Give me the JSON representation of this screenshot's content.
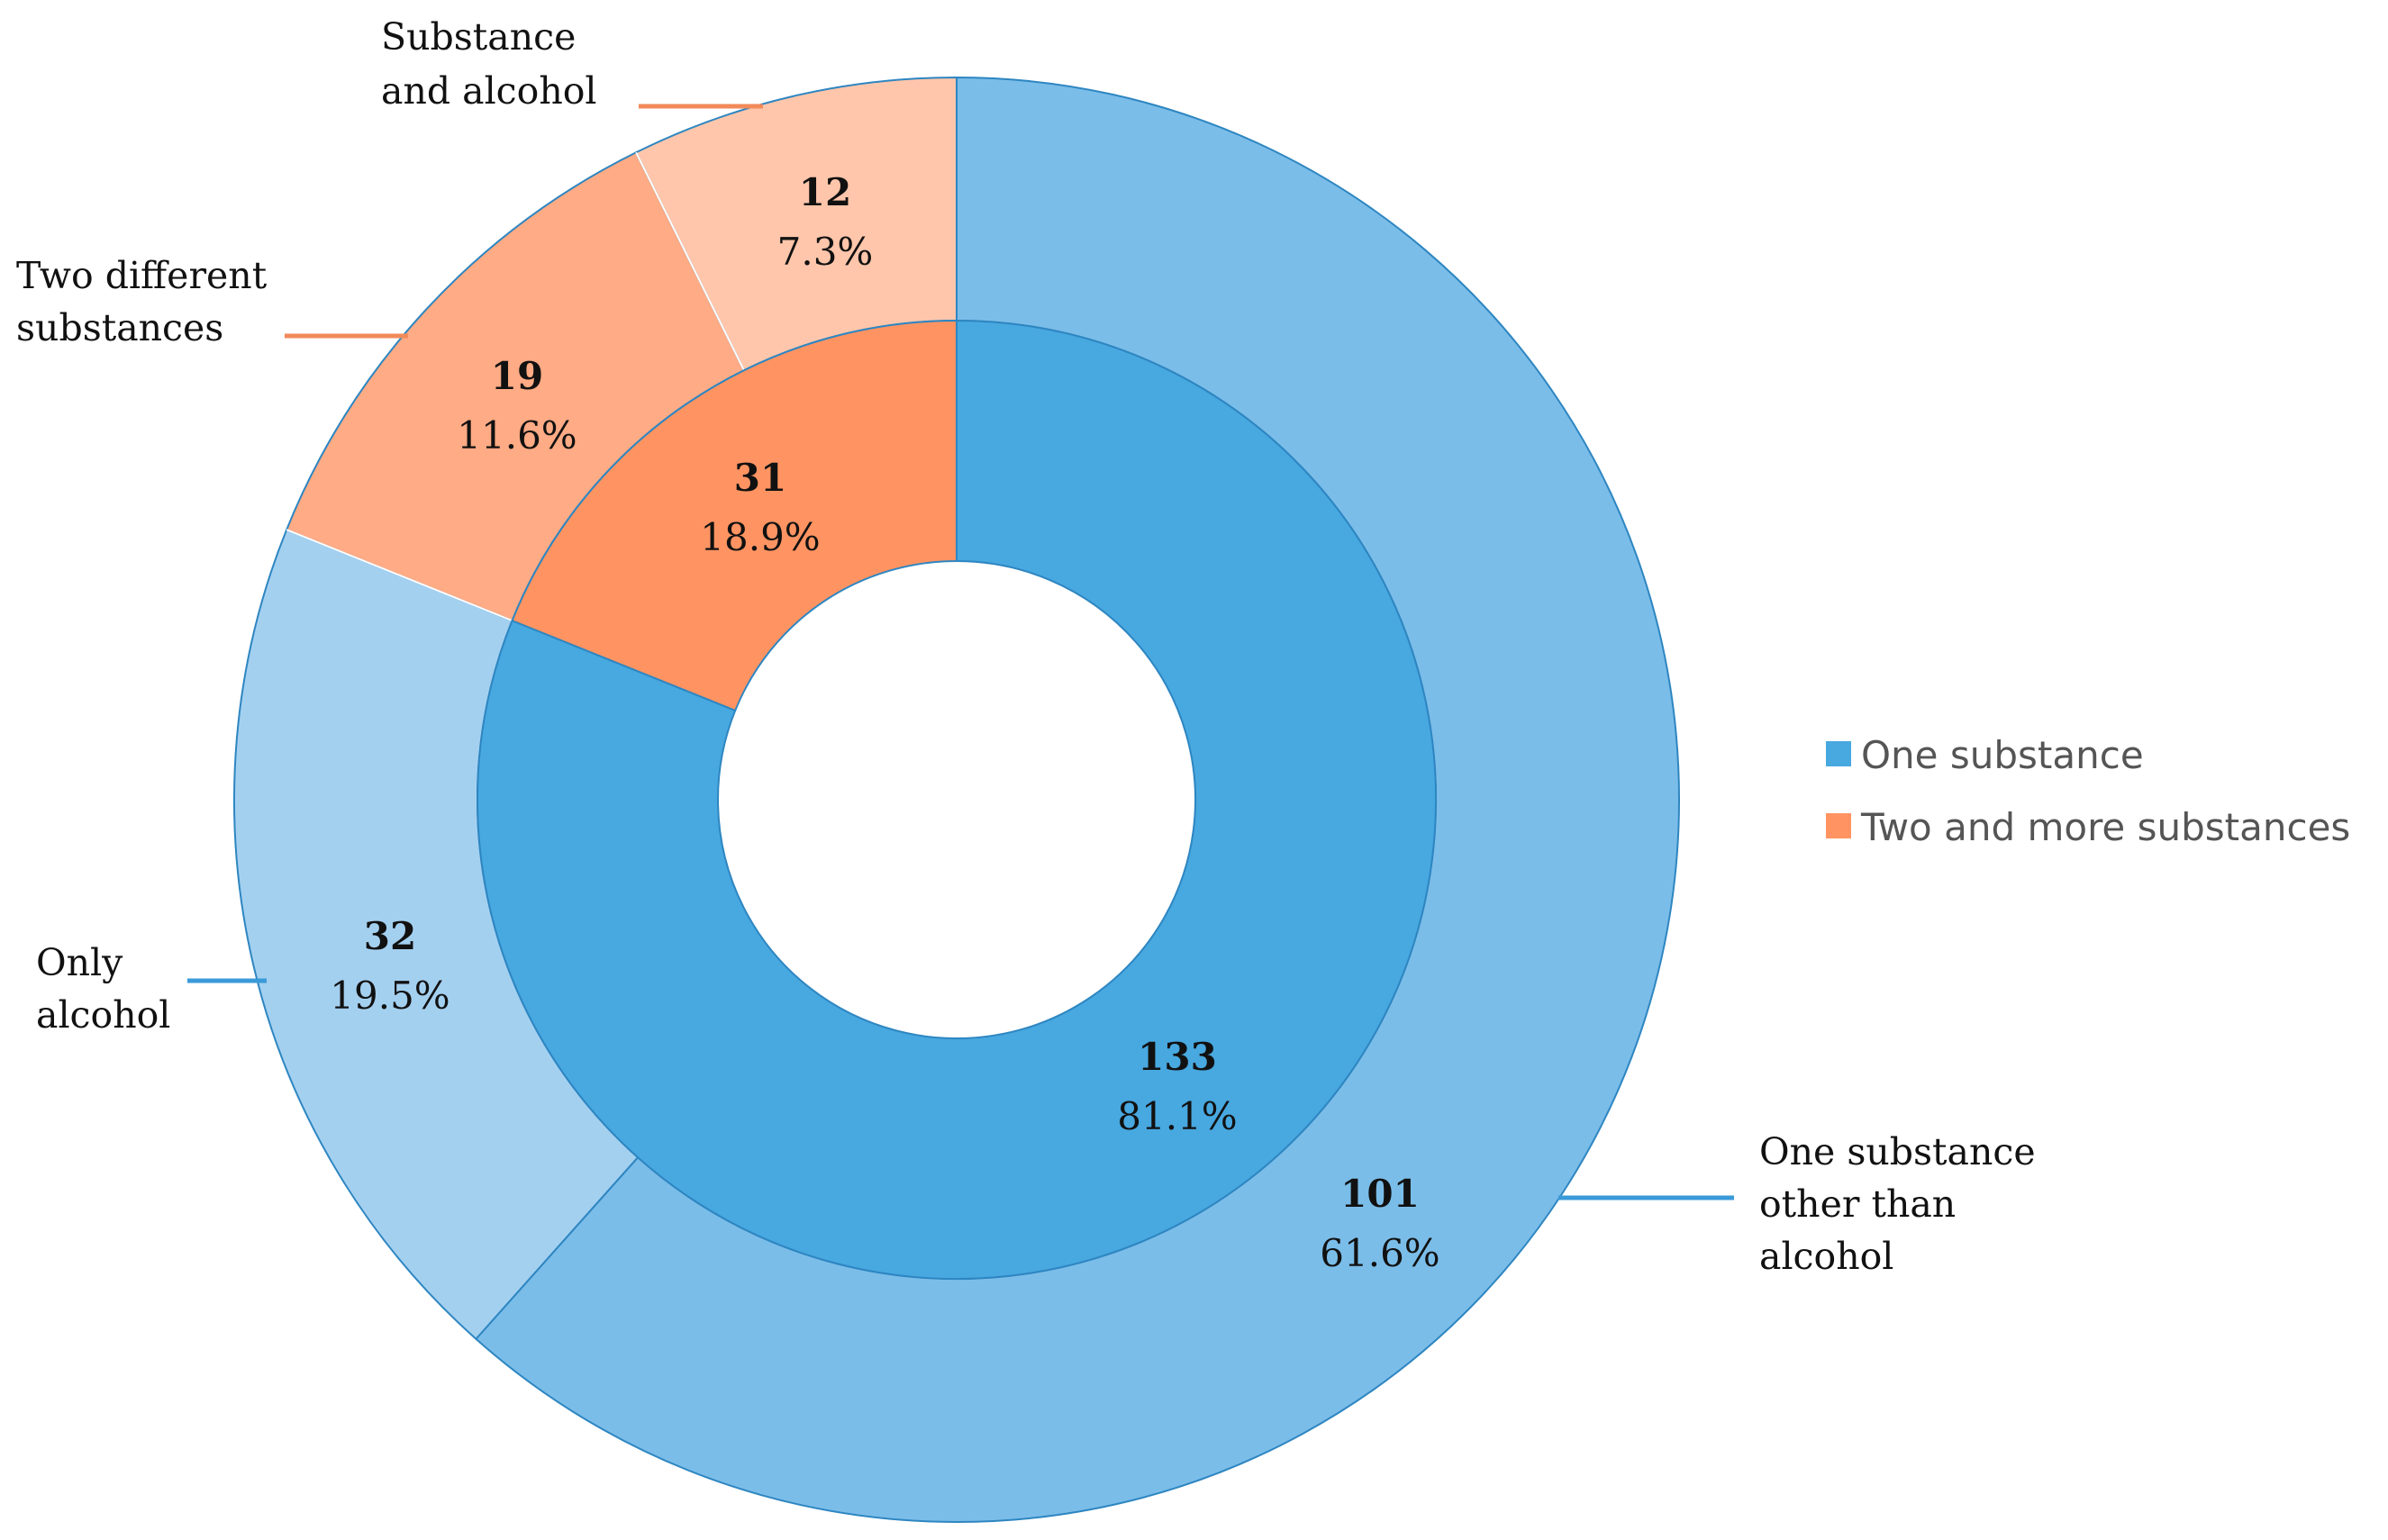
{
  "chart_data": {
    "type": "pie",
    "subtype": "nested-donut",
    "legend_position": "right",
    "inner_ring": [
      {
        "name": "One substance",
        "value": 133,
        "percent": "81.1%",
        "color": "#48a8e0"
      },
      {
        "name": "Two and more substances",
        "value": 31,
        "percent": "18.9%",
        "color": "#ff9462"
      }
    ],
    "outer_ring": [
      {
        "name": "One substance other than alcohol",
        "label_lines": [
          "One substance",
          "other than",
          "alcohol"
        ],
        "parent": "One substance",
        "value": 101,
        "percent": "61.6%",
        "color": "#7bbde9"
      },
      {
        "name": "Only alcohol",
        "label_lines": [
          "Only",
          "alcohol"
        ],
        "parent": "One substance",
        "value": 32,
        "percent": "19.5%",
        "color": "#a4d0f0"
      },
      {
        "name": "Two different substances",
        "label_lines": [
          "Two different",
          "substances"
        ],
        "parent": "Two and more substances",
        "value": 19,
        "percent": "11.6%",
        "color": "#ffab85"
      },
      {
        "name": "Substance and alcohol",
        "label_lines": [
          "Substance",
          "and alcohol"
        ],
        "parent": "Two and more substances",
        "value": 12,
        "percent": "7.3%",
        "color": "#ffc6ab"
      }
    ],
    "legend": [
      {
        "label": "One substance",
        "color": "#48a8e0"
      },
      {
        "label": "Two and more substances",
        "color": "#ff9462"
      }
    ],
    "leader_line_colors": {
      "blue": "#3a9ad9",
      "orange": "#f28a5a"
    },
    "stroke_color": "#2e86c1"
  }
}
